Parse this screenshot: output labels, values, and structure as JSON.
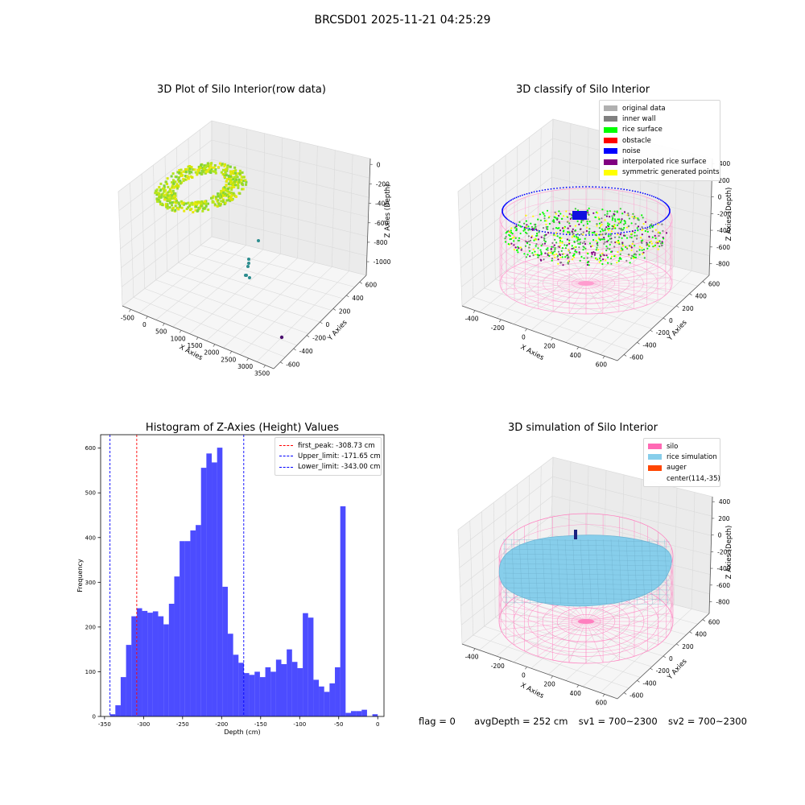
{
  "suptitle": "BRCSD01 2025-11-21 04:25:29",
  "panel_raw": {
    "title": "3D Plot of Silo Interior(row data)",
    "x_label": "X Axies",
    "y_label": "Y Axies",
    "z_label": "Z Axies (Depth)",
    "x_ticks": [
      "-500",
      "0",
      "500",
      "1000",
      "1500",
      "2000",
      "2500",
      "3000",
      "3500"
    ],
    "y_ticks": [
      "-600",
      "-400",
      "-200",
      "0",
      "200",
      "400",
      "600"
    ],
    "z_ticks": [
      "0",
      "-200",
      "-400",
      "-600",
      "-800",
      "-1000"
    ]
  },
  "panel_classify": {
    "title": "3D classify of Silo Interior",
    "x_label": "X Axies",
    "y_label": "Y Axies",
    "z_label": "Z Axies (Depth)",
    "x_ticks": [
      "-400",
      "-200",
      "0",
      "200",
      "400",
      "600"
    ],
    "y_ticks": [
      "-600",
      "-400",
      "-200",
      "0",
      "200",
      "400",
      "600"
    ],
    "z_ticks": [
      "400",
      "200",
      "0",
      "-200",
      "-400",
      "-600",
      "-800"
    ],
    "legend": [
      {
        "label": "original data",
        "color": "#b0b0b0"
      },
      {
        "label": "inner wall",
        "color": "#808080"
      },
      {
        "label": "rice surface",
        "color": "#00ff00"
      },
      {
        "label": "obstacle",
        "color": "#ff0000"
      },
      {
        "label": "noise",
        "color": "#0000ff"
      },
      {
        "label": "interpolated rice surface",
        "color": "#800080"
      },
      {
        "label": "symmetric generated points",
        "color": "#ffff00"
      }
    ]
  },
  "panel_sim": {
    "title": "3D simulation of Silo Interior",
    "x_label": "X Axies",
    "y_label": "Y Axies",
    "z_label": "Z Axies (Depth)",
    "x_ticks": [
      "-400",
      "-200",
      "0",
      "200",
      "400",
      "600"
    ],
    "y_ticks": [
      "-600",
      "-400",
      "-200",
      "0",
      "200",
      "400",
      "600"
    ],
    "z_ticks": [
      "400",
      "200",
      "0",
      "-200",
      "-400",
      "-600",
      "-800"
    ],
    "legend": [
      {
        "label": "silo",
        "color": "#ff69b4"
      },
      {
        "label": "rice simulation",
        "color": "#87ceeb"
      },
      {
        "label": "auger",
        "color": "#ff4500"
      },
      {
        "label": "center(114,-35)",
        "color": ""
      }
    ]
  },
  "info": {
    "flag": "flag = 0",
    "avg_depth": "avgDepth = 252 cm",
    "sv1": "sv1 = 700~2300",
    "sv2": "sv2 = 700~2300"
  },
  "chart_data": {
    "type": "bar",
    "title": "Histogram of Z-Axies (Height) Values",
    "xlabel": "Depth (cm)",
    "ylabel": "Frequency",
    "xlim": [
      -355,
      8
    ],
    "ylim": [
      0,
      630
    ],
    "x_ticks": [
      -350,
      -300,
      -250,
      -200,
      -150,
      -100,
      -50,
      0
    ],
    "y_ticks": [
      0,
      100,
      200,
      300,
      400,
      500,
      600
    ],
    "bin_start": -343,
    "bin_width": 6.86,
    "values": [
      5,
      25,
      88,
      160,
      224,
      242,
      236,
      232,
      235,
      224,
      206,
      252,
      313,
      392,
      392,
      416,
      428,
      556,
      588,
      568,
      601,
      290,
      185,
      138,
      120,
      97,
      93,
      100,
      88,
      110,
      100,
      127,
      117,
      150,
      122,
      108,
      231,
      221,
      82,
      67,
      55,
      74,
      110,
      470,
      8,
      12,
      12,
      15,
      0,
      5
    ],
    "bar_color": "#0000ff",
    "bar_opacity": 0.7,
    "vlines": [
      {
        "label": "first_peak: -308.73 cm",
        "x": -308.73,
        "color": "#ff0000"
      },
      {
        "label": "Upper_limit: -171.65 cm",
        "x": -171.65,
        "color": "#0000ff"
      },
      {
        "label": "Lower_limit: -343.00 cm",
        "x": -343.0,
        "color": "#0000ff"
      }
    ],
    "legend_position": "top-right",
    "grid": false
  }
}
